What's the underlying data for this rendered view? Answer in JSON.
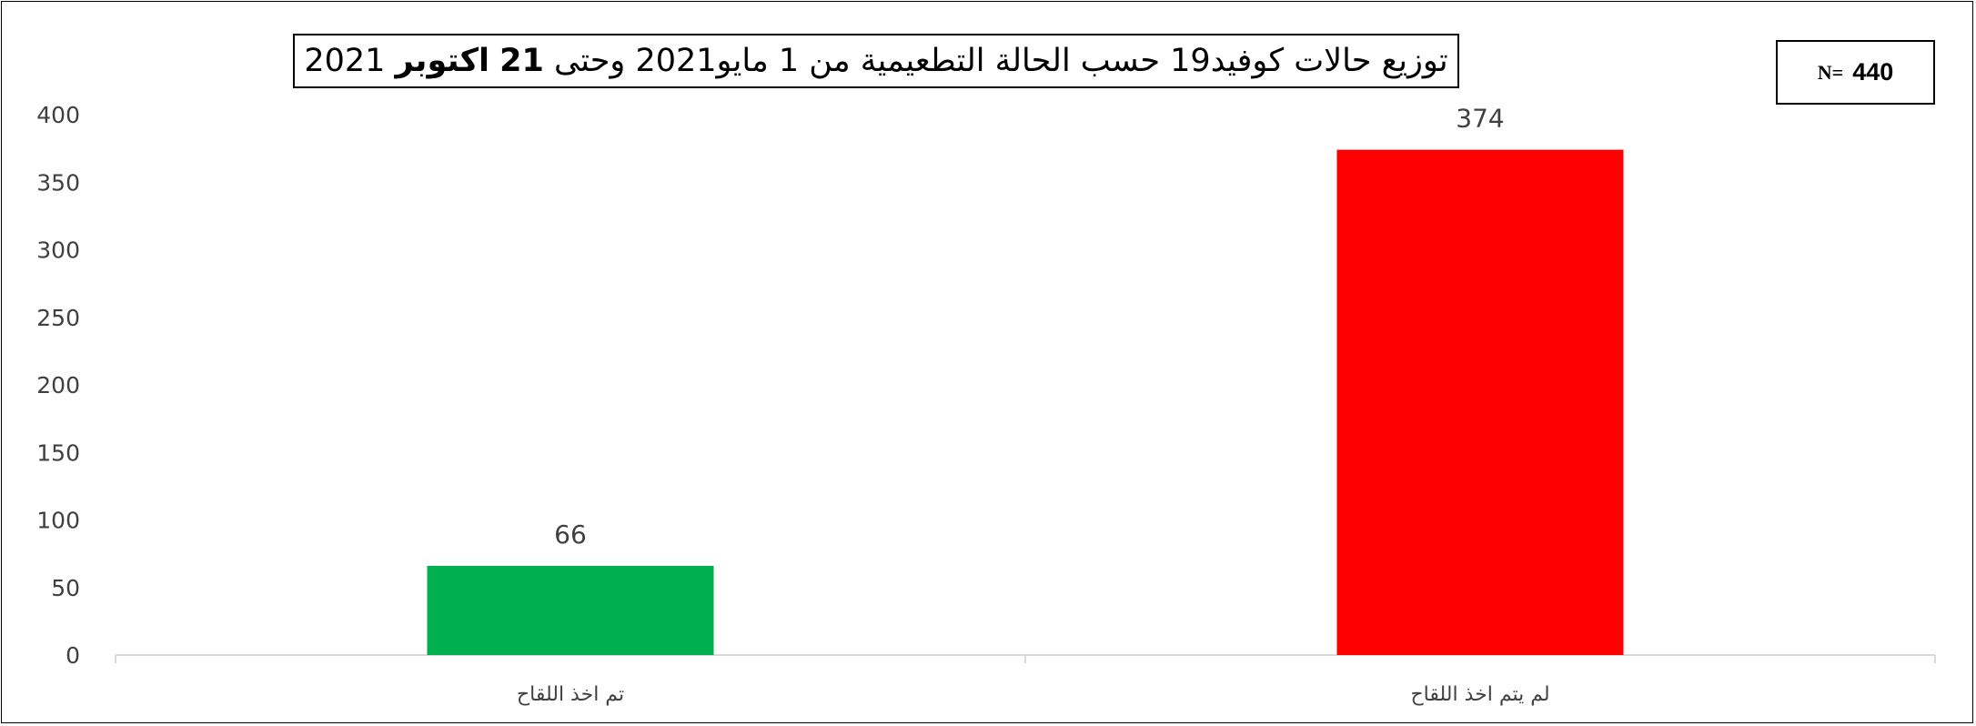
{
  "chart_data": {
    "type": "bar",
    "title_parts": {
      "lead": "توزيع حالات كوفيد19 حسب الحالة التطعيمية من 1 مايو2021 وحتى",
      "day": "21",
      "month": "اكتوبر",
      "year": "2021"
    },
    "n_box": {
      "label": "N=",
      "value": "440"
    },
    "categories": [
      "تم اخذ اللقاح",
      "لم يتم اخذ اللقاح"
    ],
    "values": [
      66,
      374
    ],
    "data_labels": [
      "66",
      "374"
    ],
    "colors": [
      "#00B050",
      "#FF0000"
    ],
    "y_ticks": [
      0,
      50,
      100,
      150,
      200,
      250,
      300,
      350,
      400
    ],
    "ylim": [
      0,
      400
    ],
    "grid": false,
    "legend": "none",
    "xlabel": "",
    "ylabel": ""
  }
}
